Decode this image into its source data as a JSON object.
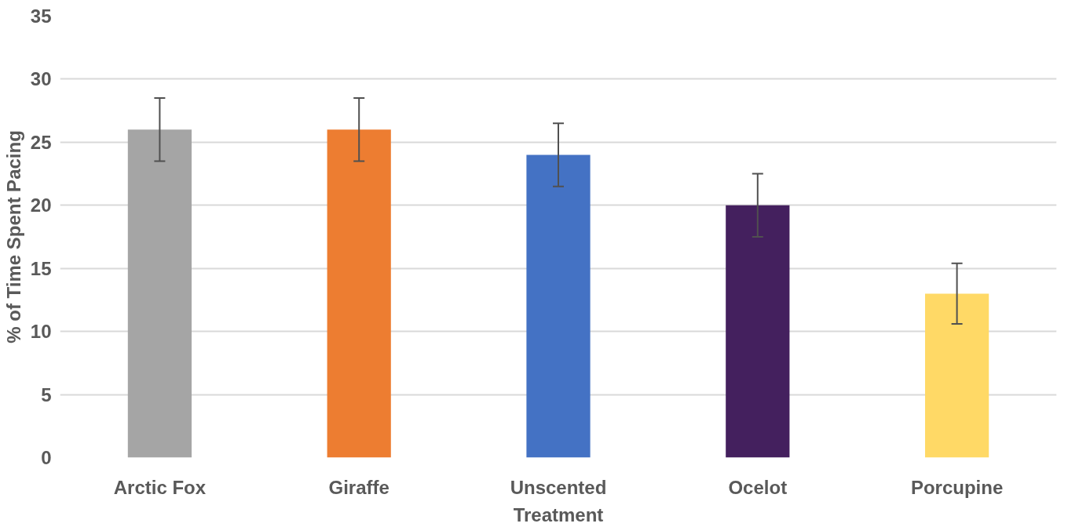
{
  "chart_data": {
    "type": "bar",
    "xlabel": "Treatment",
    "ylabel": "% of Time Spent Pacing",
    "categories": [
      "Arctic Fox",
      "Giraffe",
      "Unscented",
      "Ocelot",
      "Porcupine"
    ],
    "values": [
      26,
      26,
      24,
      20,
      13
    ],
    "colors": [
      "#a5a5a5",
      "#ed7d31",
      "#4472c4",
      "#44205e",
      "#ffd966"
    ],
    "errors": [
      2.5,
      2.5,
      2.5,
      2.5,
      2.4
    ],
    "ylim": [
      0,
      35
    ],
    "yticks": [
      0,
      5,
      10,
      15,
      20,
      25,
      30,
      35
    ],
    "grid": "y"
  }
}
